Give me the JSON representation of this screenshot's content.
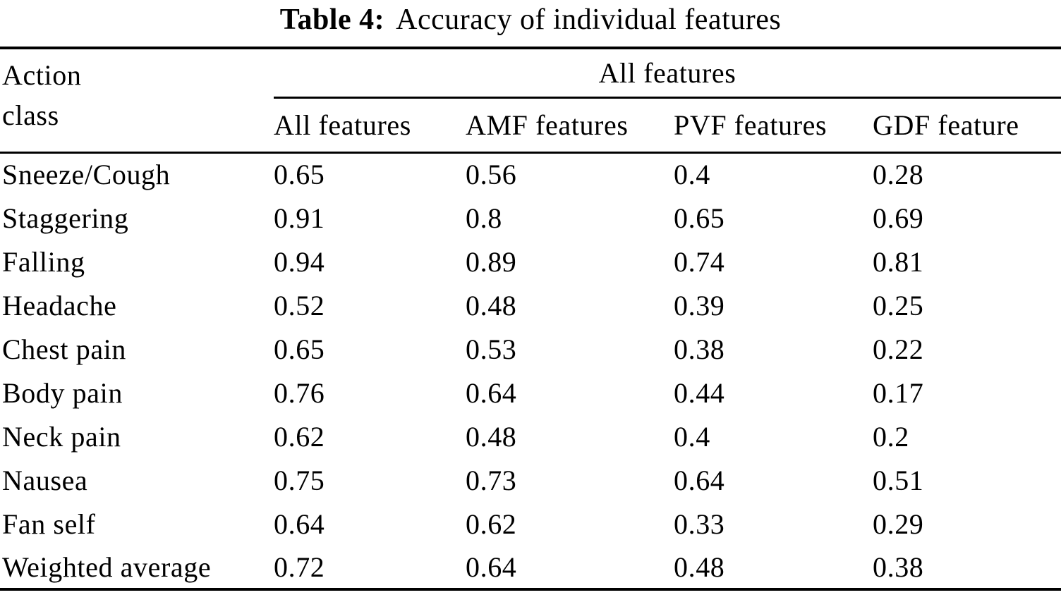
{
  "title": {
    "label": "Table 4:",
    "text": "Accuracy of individual features"
  },
  "table": {
    "row_header": {
      "line1": "Action",
      "line2": "class"
    },
    "span_header": "All features",
    "columns": [
      "All features",
      "AMF features",
      "PVF features",
      "GDF feature"
    ],
    "rows": [
      {
        "label": "Sneeze/Cough",
        "values": [
          "0.65",
          "0.56",
          "0.4",
          "0.28"
        ]
      },
      {
        "label": "Staggering",
        "values": [
          "0.91",
          "0.8",
          "0.65",
          "0.69"
        ]
      },
      {
        "label": "Falling",
        "values": [
          "0.94",
          "0.89",
          "0.74",
          "0.81"
        ]
      },
      {
        "label": "Headache",
        "values": [
          "0.52",
          "0.48",
          "0.39",
          "0.25"
        ]
      },
      {
        "label": "Chest pain",
        "values": [
          "0.65",
          "0.53",
          "0.38",
          "0.22"
        ]
      },
      {
        "label": "Body pain",
        "values": [
          "0.76",
          "0.64",
          "0.44",
          "0.17"
        ]
      },
      {
        "label": "Neck pain",
        "values": [
          "0.62",
          "0.48",
          "0.4",
          "0.2"
        ]
      },
      {
        "label": "Nausea",
        "values": [
          "0.75",
          "0.73",
          "0.64",
          "0.51"
        ]
      },
      {
        "label": "Fan self",
        "values": [
          "0.64",
          "0.62",
          "0.33",
          "0.29"
        ]
      },
      {
        "label": "Weighted average",
        "values": [
          "0.72",
          "0.64",
          "0.48",
          "0.38"
        ]
      }
    ]
  },
  "colors": {
    "text": "#000000",
    "background": "#ffffff",
    "rule": "#000000"
  }
}
